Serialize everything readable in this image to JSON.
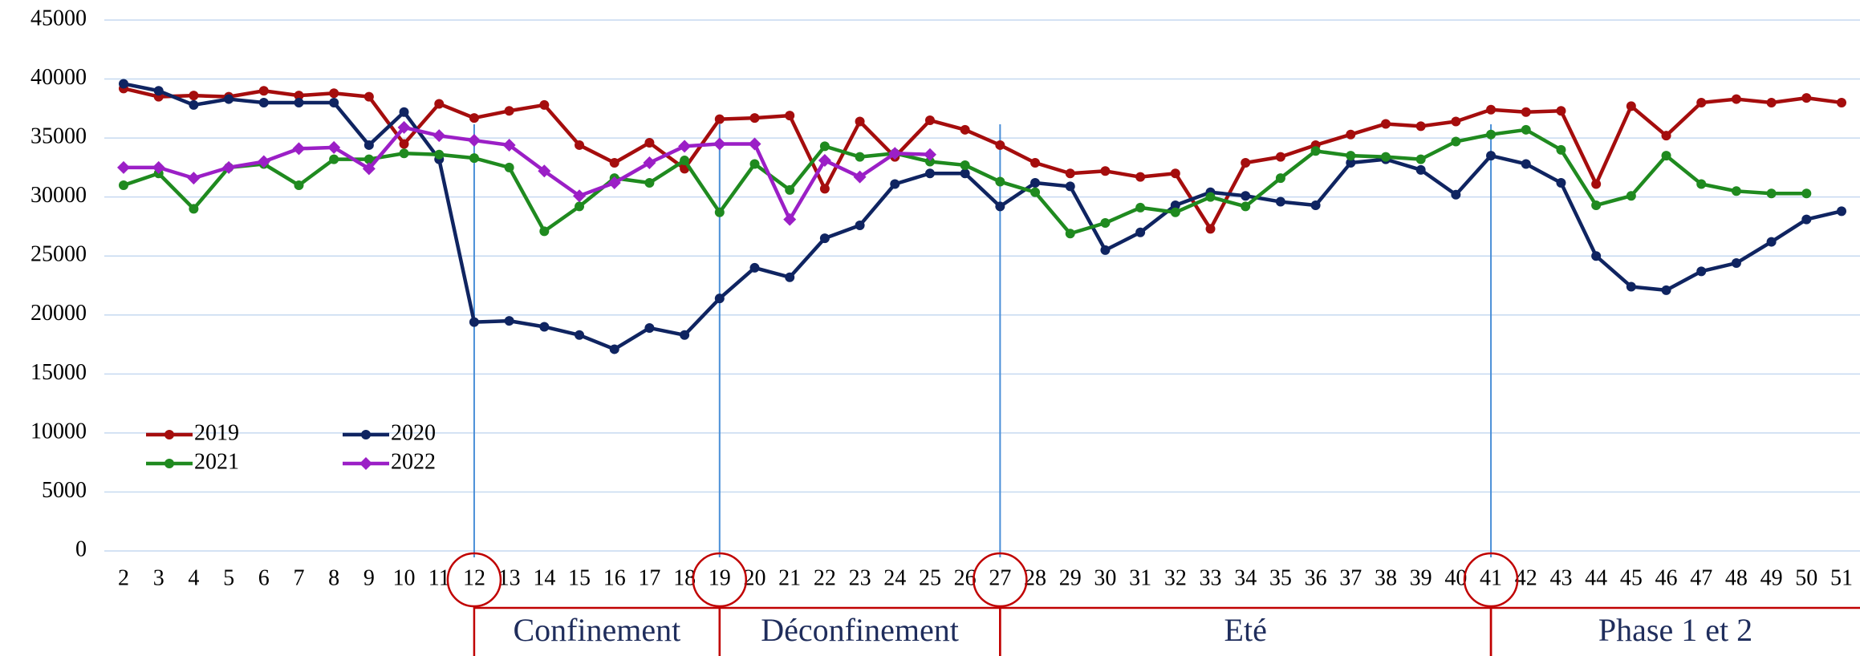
{
  "chart_data": {
    "type": "line",
    "x": [
      2,
      3,
      4,
      5,
      6,
      7,
      8,
      9,
      10,
      11,
      12,
      13,
      14,
      15,
      16,
      17,
      18,
      19,
      20,
      21,
      22,
      23,
      24,
      25,
      26,
      27,
      28,
      29,
      30,
      31,
      32,
      33,
      34,
      35,
      36,
      37,
      38,
      39,
      40,
      41,
      42,
      43,
      44,
      45,
      46,
      47,
      48,
      49,
      50,
      51
    ],
    "series": [
      {
        "name": "2019",
        "color": "#a50d0d",
        "marker": "circle",
        "values": [
          39200,
          38500,
          38600,
          38500,
          39000,
          38600,
          38800,
          38500,
          34500,
          37900,
          36700,
          37300,
          37800,
          34400,
          32900,
          34600,
          32400,
          36600,
          36700,
          36900,
          30700,
          36400,
          33400,
          36500,
          35700,
          34400,
          32900,
          32000,
          32200,
          31700,
          32000,
          27300,
          32900,
          33400,
          34400,
          35300,
          36200,
          36000,
          36400,
          37400,
          37200,
          37300,
          31100,
          37700,
          35200,
          38000,
          38300,
          38000,
          38400,
          38000
        ]
      },
      {
        "name": "2020",
        "color": "#0f2461",
        "marker": "circle",
        "values": [
          39600,
          39000,
          37800,
          38300,
          38000,
          38000,
          38000,
          34400,
          37200,
          33200,
          19400,
          19500,
          19000,
          18300,
          17100,
          18900,
          18300,
          21400,
          24000,
          23200,
          26500,
          27600,
          31100,
          32000,
          32000,
          29200,
          31200,
          30900,
          25500,
          27000,
          29300,
          30400,
          30100,
          29600,
          29300,
          32900,
          33200,
          32300,
          30200,
          33500,
          32800,
          31200,
          25000,
          22400,
          22100,
          23700,
          24400,
          26200,
          28100,
          28800
        ]
      },
      {
        "name": "2021",
        "color": "#1f8a1f",
        "marker": "circle",
        "values": [
          31000,
          32000,
          29000,
          32500,
          32800,
          31000,
          33200,
          33200,
          33700,
          33600,
          33300,
          32500,
          27100,
          29200,
          31600,
          31200,
          33100,
          28700,
          32800,
          30600,
          34300,
          33400,
          33700,
          33000,
          32700,
          31300,
          30400,
          26900,
          27800,
          29100,
          28700,
          30000,
          29200,
          31600,
          33900,
          33500,
          33400,
          33200,
          34700,
          35300,
          35700,
          34000,
          29300,
          30100,
          33500,
          31100,
          30500,
          30300,
          30300,
          null
        ]
      },
      {
        "name": "2022",
        "color": "#9b1fc6",
        "marker": "diamond",
        "values": [
          32500,
          32500,
          31600,
          32500,
          33000,
          34100,
          34200,
          32400,
          35900,
          35200,
          34800,
          34400,
          32200,
          30100,
          31200,
          32900,
          34300,
          34500,
          34500,
          28100,
          33100,
          31700,
          33700,
          33600,
          null,
          null,
          null,
          null,
          null,
          null,
          null,
          null,
          null,
          null,
          null,
          null,
          null,
          null,
          null,
          null,
          null,
          null,
          null,
          null,
          null,
          null,
          null,
          null,
          null,
          null
        ]
      }
    ],
    "ylim": [
      0,
      45000
    ],
    "yticks": [
      0,
      5000,
      10000,
      15000,
      20000,
      25000,
      30000,
      35000,
      40000,
      45000
    ],
    "xlim": [
      2,
      51
    ],
    "grid": true,
    "legend": "lower left",
    "periods": [
      {
        "label": "Confinement",
        "start": 12
      },
      {
        "label": "Déconfinement",
        "start": 19
      },
      {
        "label": "Eté",
        "start": 27
      },
      {
        "label": "Phase 1 et 2",
        "start": 41
      }
    ]
  }
}
